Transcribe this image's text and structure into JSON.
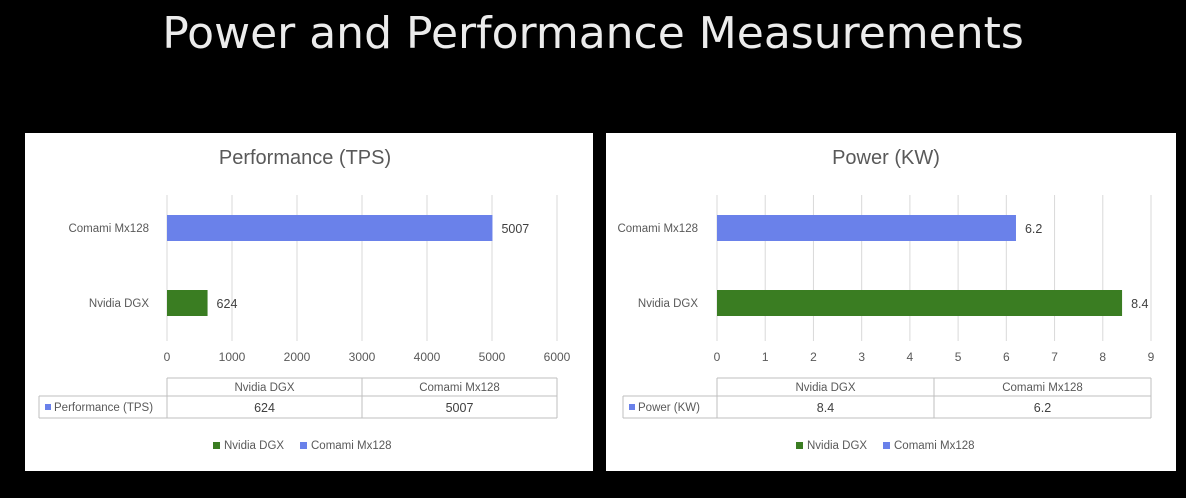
{
  "slide": {
    "title": "Power and Performance Measurements"
  },
  "colors": {
    "nvidia": "#3a7d22",
    "comami": "#6a81ea"
  },
  "chart_data": [
    {
      "type": "bar",
      "orientation": "horizontal",
      "title": "Performance (TPS)",
      "categories": [
        "Comami Mx128",
        "Nvidia DGX"
      ],
      "values": [
        5007,
        624
      ],
      "xlim": [
        0,
        6000
      ],
      "ticks": [
        0,
        1000,
        2000,
        3000,
        4000,
        5000,
        6000
      ],
      "grid": true,
      "data_table": {
        "headers": [
          "Nvidia DGX",
          "Comami Mx128"
        ],
        "series_label": "Performance (TPS)",
        "row": [
          "624",
          "5007"
        ]
      },
      "legend": [
        "Nvidia DGX",
        "Comami Mx128"
      ],
      "legend_position": "bottom"
    },
    {
      "type": "bar",
      "orientation": "horizontal",
      "title": "Power (KW)",
      "categories": [
        "Comami Mx128",
        "Nvidia DGX"
      ],
      "values": [
        6.2,
        8.4
      ],
      "xlim": [
        0,
        9
      ],
      "ticks": [
        0,
        1,
        2,
        3,
        4,
        5,
        6,
        7,
        8,
        9
      ],
      "grid": true,
      "data_table": {
        "headers": [
          "Nvidia DGX",
          "Comami Mx128"
        ],
        "series_label": "Power (KW)",
        "row": [
          "8.4",
          "6.2"
        ]
      },
      "legend": [
        "Nvidia DGX",
        "Comami Mx128"
      ],
      "legend_position": "bottom"
    }
  ]
}
